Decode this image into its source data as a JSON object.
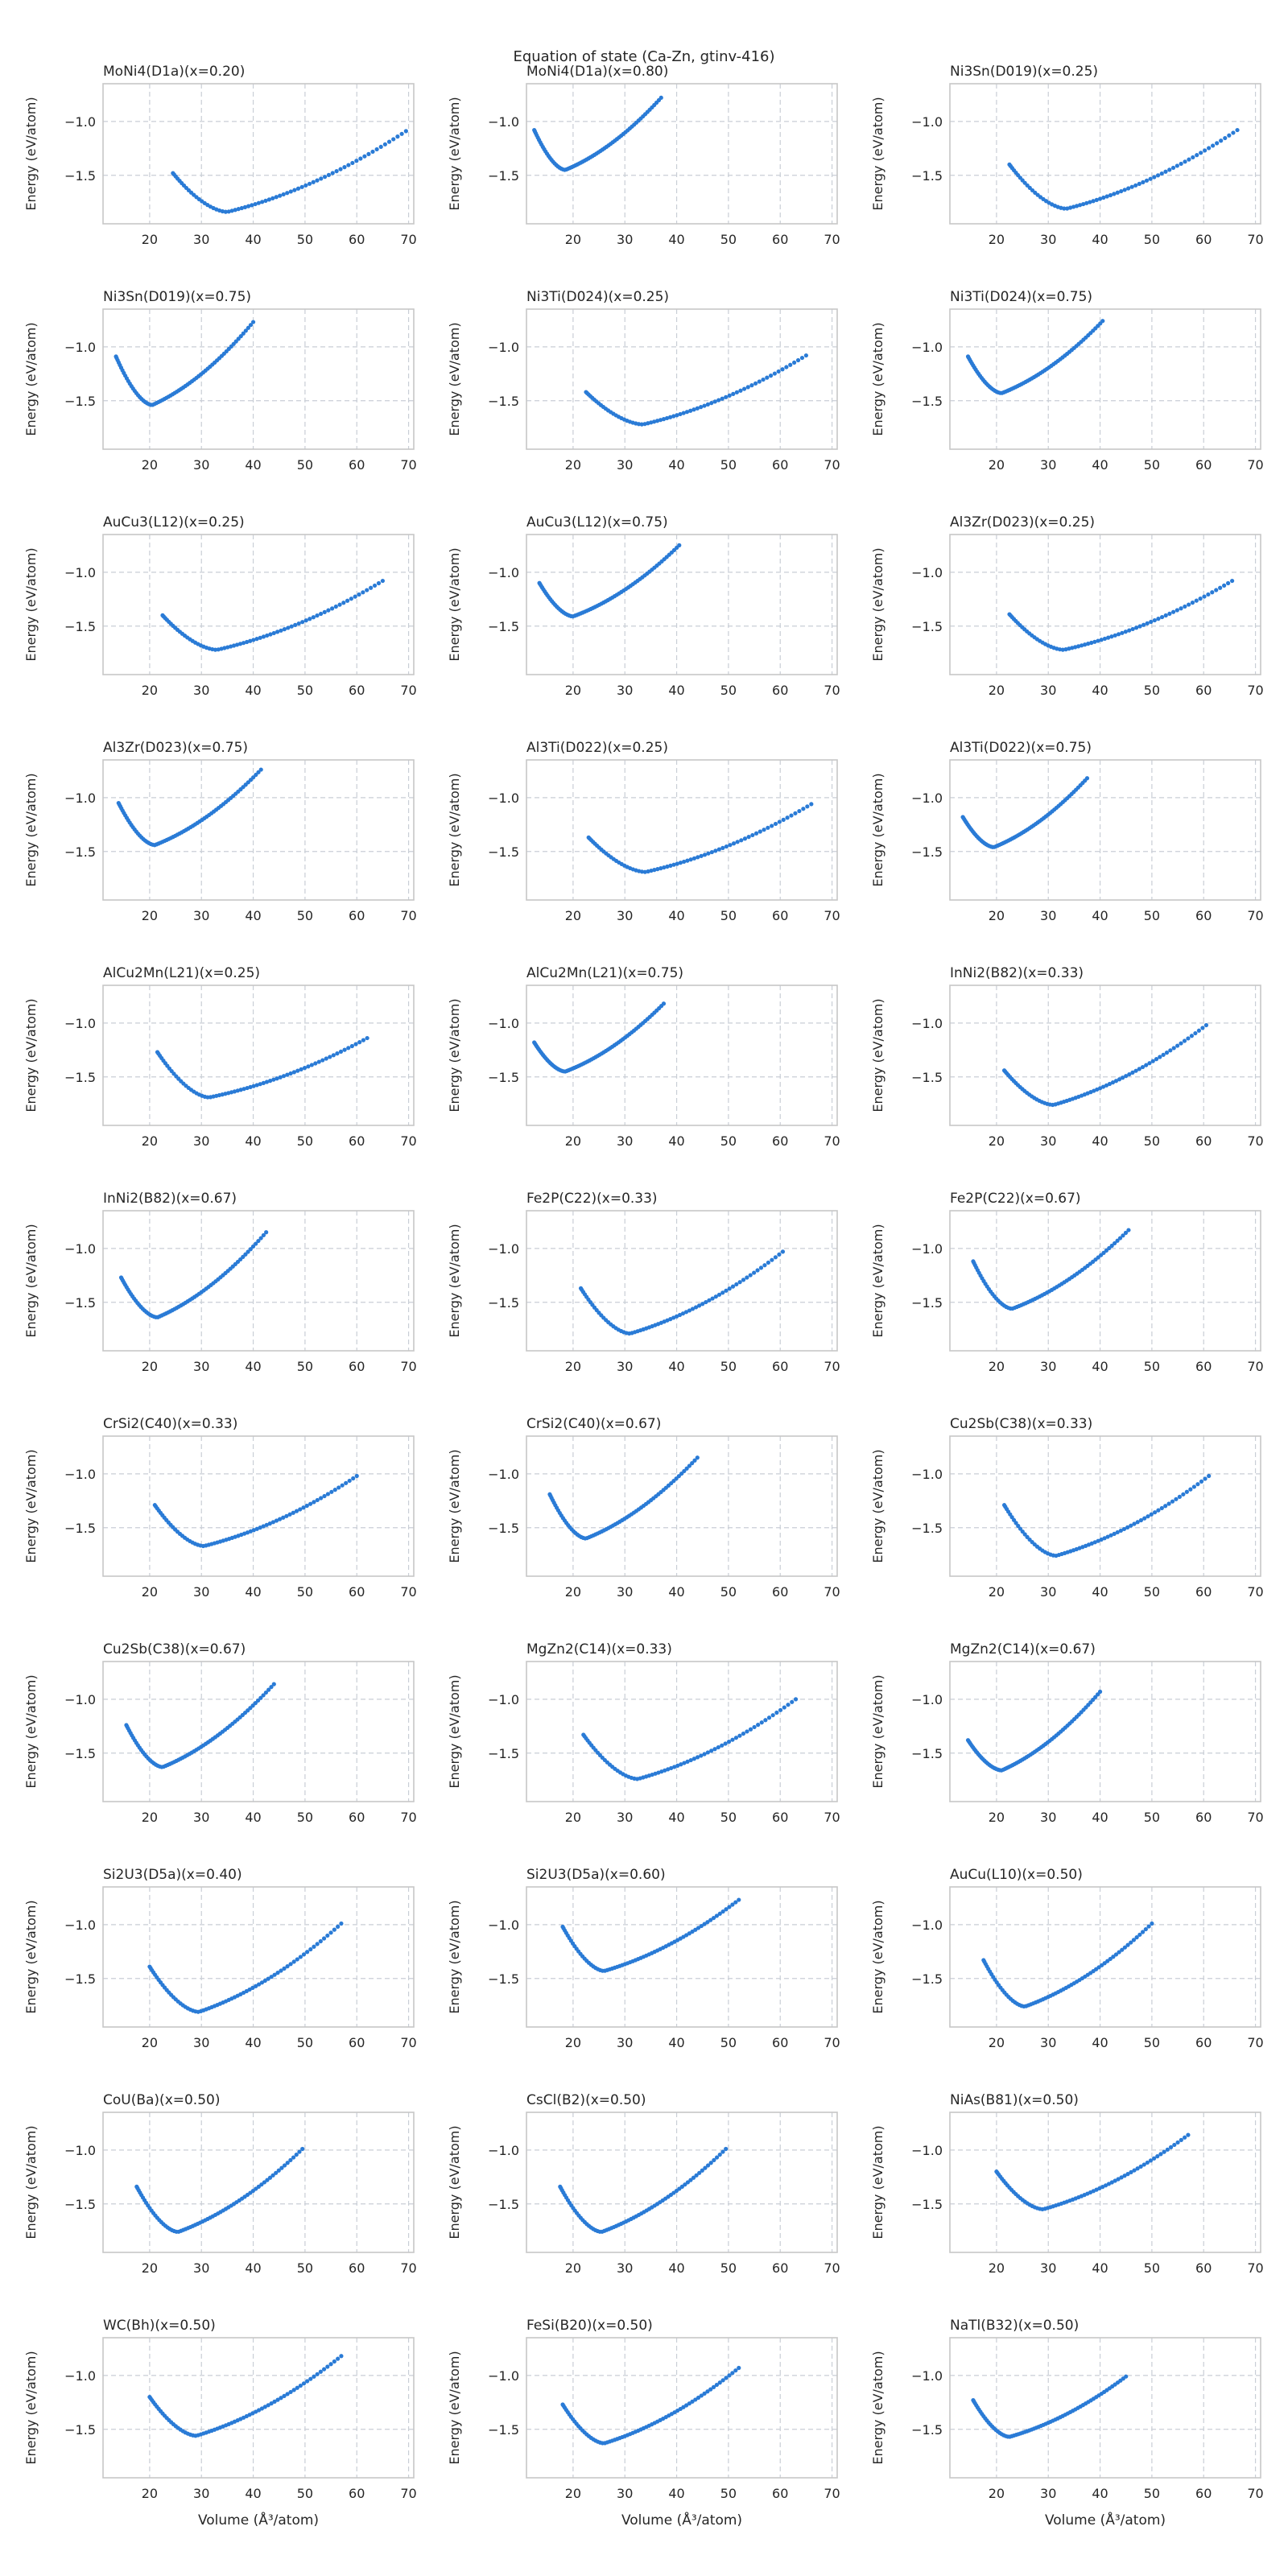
{
  "figure": {
    "suptitle": "Equation of state (Ca-Zn, gtinv-416)",
    "xlabel": "Volume (Å³/atom)",
    "ylabel": "Energy (eV/atom)",
    "marker_color": "#2a7bd6",
    "grid_color": "#c9ced6",
    "frame_color": "#c7c7c7"
  },
  "chart_data": {
    "type": "scatter",
    "rows": 11,
    "cols": 3,
    "xlim": [
      11,
      71
    ],
    "ylim": [
      -1.95,
      -0.65
    ],
    "xticks": [
      20,
      30,
      40,
      50,
      60,
      70
    ],
    "yticks": [
      -1.0,
      -1.5
    ],
    "ytick_labels": [
      "−1.0",
      "−1.5"
    ],
    "grid": true,
    "panels": [
      {
        "title": "MoNi4(D1a)(x=0.20)",
        "vmin": 24.5,
        "vmax": 69.5,
        "v0": 35,
        "e0": -1.84,
        "e_left": -1.48,
        "e_right": -1.09
      },
      {
        "title": "MoNi4(D1a)(x=0.80)",
        "vmin": 12.5,
        "vmax": 37.0,
        "v0": 18.5,
        "e0": -1.45,
        "e_left": -1.08,
        "e_right": -0.78
      },
      {
        "title": "Ni3Sn(D019)(x=0.25)",
        "vmin": 22.5,
        "vmax": 66.5,
        "v0": 33.5,
        "e0": -1.81,
        "e_left": -1.4,
        "e_right": -1.08
      },
      {
        "title": "Ni3Sn(D019)(x=0.75)",
        "vmin": 13.5,
        "vmax": 40.0,
        "v0": 20.5,
        "e0": -1.54,
        "e_left": -1.09,
        "e_right": -0.77
      },
      {
        "title": "Ni3Ti(D024)(x=0.25)",
        "vmin": 22.5,
        "vmax": 65.0,
        "v0": 33.5,
        "e0": -1.72,
        "e_left": -1.42,
        "e_right": -1.08
      },
      {
        "title": "Ni3Ti(D024)(x=0.75)",
        "vmin": 14.5,
        "vmax": 40.5,
        "v0": 21.0,
        "e0": -1.43,
        "e_left": -1.09,
        "e_right": -0.76
      },
      {
        "title": "AuCu3(L12)(x=0.25)",
        "vmin": 22.5,
        "vmax": 65.0,
        "v0": 33.0,
        "e0": -1.72,
        "e_left": -1.4,
        "e_right": -1.08
      },
      {
        "title": "AuCu3(L12)(x=0.75)",
        "vmin": 13.5,
        "vmax": 40.5,
        "v0": 20.0,
        "e0": -1.41,
        "e_left": -1.1,
        "e_right": -0.75
      },
      {
        "title": "Al3Zr(D023)(x=0.25)",
        "vmin": 22.5,
        "vmax": 65.5,
        "v0": 33.0,
        "e0": -1.72,
        "e_left": -1.39,
        "e_right": -1.08
      },
      {
        "title": "Al3Zr(D023)(x=0.75)",
        "vmin": 14.0,
        "vmax": 41.5,
        "v0": 21.0,
        "e0": -1.44,
        "e_left": -1.05,
        "e_right": -0.74
      },
      {
        "title": "Al3Ti(D022)(x=0.25)",
        "vmin": 23.0,
        "vmax": 66.0,
        "v0": 34.0,
        "e0": -1.69,
        "e_left": -1.37,
        "e_right": -1.06
      },
      {
        "title": "Al3Ti(D022)(x=0.75)",
        "vmin": 13.5,
        "vmax": 37.5,
        "v0": 19.5,
        "e0": -1.46,
        "e_left": -1.18,
        "e_right": -0.82
      },
      {
        "title": "AlCu2Mn(L21)(x=0.25)",
        "vmin": 21.5,
        "vmax": 62.0,
        "v0": 31.5,
        "e0": -1.69,
        "e_left": -1.27,
        "e_right": -1.14
      },
      {
        "title": "AlCu2Mn(L21)(x=0.75)",
        "vmin": 12.5,
        "vmax": 37.5,
        "v0": 18.5,
        "e0": -1.45,
        "e_left": -1.18,
        "e_right": -0.82
      },
      {
        "title": "InNi2(B82)(x=0.33)",
        "vmin": 21.5,
        "vmax": 60.5,
        "v0": 31.0,
        "e0": -1.76,
        "e_left": -1.44,
        "e_right": -1.02
      },
      {
        "title": "InNi2(B82)(x=0.67)",
        "vmin": 14.5,
        "vmax": 42.5,
        "v0": 21.5,
        "e0": -1.64,
        "e_left": -1.27,
        "e_right": -0.85
      },
      {
        "title": "Fe2P(C22)(x=0.33)",
        "vmin": 21.5,
        "vmax": 60.5,
        "v0": 31.0,
        "e0": -1.79,
        "e_left": -1.37,
        "e_right": -1.03
      },
      {
        "title": "Fe2P(C22)(x=0.67)",
        "vmin": 15.5,
        "vmax": 45.5,
        "v0": 23.0,
        "e0": -1.56,
        "e_left": -1.12,
        "e_right": -0.83
      },
      {
        "title": "CrSi2(C40)(x=0.33)",
        "vmin": 21.0,
        "vmax": 60.0,
        "v0": 30.5,
        "e0": -1.67,
        "e_left": -1.29,
        "e_right": -1.02
      },
      {
        "title": "CrSi2(C40)(x=0.67)",
        "vmin": 15.5,
        "vmax": 44.0,
        "v0": 22.5,
        "e0": -1.6,
        "e_left": -1.19,
        "e_right": -0.85
      },
      {
        "title": "Cu2Sb(C38)(x=0.33)",
        "vmin": 21.5,
        "vmax": 61.0,
        "v0": 31.5,
        "e0": -1.76,
        "e_left": -1.29,
        "e_right": -1.02
      },
      {
        "title": "Cu2Sb(C38)(x=0.67)",
        "vmin": 15.5,
        "vmax": 44.0,
        "v0": 22.5,
        "e0": -1.63,
        "e_left": -1.24,
        "e_right": -0.86
      },
      {
        "title": "MgZn2(C14)(x=0.33)",
        "vmin": 22.0,
        "vmax": 63.0,
        "v0": 32.5,
        "e0": -1.74,
        "e_left": -1.33,
        "e_right": -1.0
      },
      {
        "title": "MgZn2(C14)(x=0.67)",
        "vmin": 14.5,
        "vmax": 40.0,
        "v0": 21.0,
        "e0": -1.66,
        "e_left": -1.38,
        "e_right": -0.93
      },
      {
        "title": "Si2U3(D5a)(x=0.40)",
        "vmin": 20.0,
        "vmax": 57.0,
        "v0": 29.5,
        "e0": -1.81,
        "e_left": -1.39,
        "e_right": -0.99
      },
      {
        "title": "Si2U3(D5a)(x=0.60)",
        "vmin": 18.0,
        "vmax": 52.0,
        "v0": 26.0,
        "e0": -1.43,
        "e_left": -1.02,
        "e_right": -0.77
      },
      {
        "title": "AuCu(L10)(x=0.50)",
        "vmin": 17.5,
        "vmax": 50.0,
        "v0": 25.5,
        "e0": -1.76,
        "e_left": -1.33,
        "e_right": -0.99
      },
      {
        "title": "CoU(Ba)(x=0.50)",
        "vmin": 17.5,
        "vmax": 49.5,
        "v0": 25.5,
        "e0": -1.76,
        "e_left": -1.34,
        "e_right": -0.99
      },
      {
        "title": "CsCl(B2)(x=0.50)",
        "vmin": 17.5,
        "vmax": 49.5,
        "v0": 25.5,
        "e0": -1.76,
        "e_left": -1.34,
        "e_right": -0.99
      },
      {
        "title": "NiAs(B81)(x=0.50)",
        "vmin": 20.0,
        "vmax": 57.0,
        "v0": 29.0,
        "e0": -1.55,
        "e_left": -1.2,
        "e_right": -0.86
      },
      {
        "title": "WC(Bh)(x=0.50)",
        "vmin": 20.0,
        "vmax": 57.0,
        "v0": 29.0,
        "e0": -1.56,
        "e_left": -1.2,
        "e_right": -0.82
      },
      {
        "title": "FeSi(B20)(x=0.50)",
        "vmin": 18.0,
        "vmax": 52.0,
        "v0": 26.0,
        "e0": -1.63,
        "e_left": -1.27,
        "e_right": -0.93
      },
      {
        "title": "NaTl(B32)(x=0.50)",
        "vmin": 15.5,
        "vmax": 45.0,
        "v0": 22.5,
        "e0": -1.57,
        "e_left": -1.23,
        "e_right": -1.01
      }
    ]
  }
}
